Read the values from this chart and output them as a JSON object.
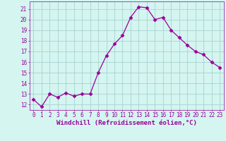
{
  "x": [
    0,
    1,
    2,
    3,
    4,
    5,
    6,
    7,
    8,
    9,
    10,
    11,
    12,
    13,
    14,
    15,
    16,
    17,
    18,
    19,
    20,
    21,
    22,
    23
  ],
  "y": [
    12.5,
    11.8,
    13.0,
    12.7,
    13.1,
    12.8,
    13.0,
    13.0,
    15.0,
    16.6,
    17.7,
    18.5,
    20.2,
    21.2,
    21.1,
    20.0,
    20.2,
    19.0,
    18.3,
    17.6,
    17.0,
    16.7,
    16.0,
    15.5
  ],
  "line_color": "#990099",
  "marker": "D",
  "marker_size": 2.5,
  "background_color": "#d4f5f0",
  "grid_color": "#a0cccc",
  "xlabel": "Windchill (Refroidissement éolien,°C)",
  "xlabel_color": "#990099",
  "tick_color": "#990099",
  "ylim": [
    11.5,
    21.7
  ],
  "xlim": [
    -0.5,
    23.5
  ],
  "yticks": [
    12,
    13,
    14,
    15,
    16,
    17,
    18,
    19,
    20,
    21
  ],
  "xticks": [
    0,
    1,
    2,
    3,
    4,
    5,
    6,
    7,
    8,
    9,
    10,
    11,
    12,
    13,
    14,
    15,
    16,
    17,
    18,
    19,
    20,
    21,
    22,
    23
  ],
  "tick_fontsize": 5.5,
  "xlabel_fontsize": 6.5,
  "linewidth": 0.9
}
